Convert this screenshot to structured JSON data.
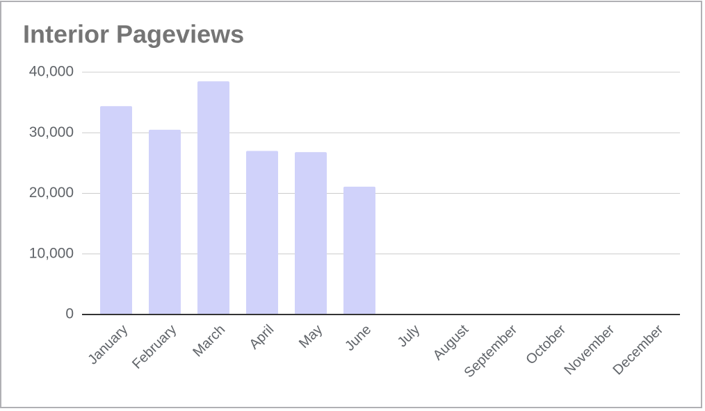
{
  "chart_data": {
    "type": "bar",
    "title": "Interior Pageviews",
    "categories": [
      "January",
      "February",
      "March",
      "April",
      "May",
      "June",
      "July",
      "August",
      "September",
      "October",
      "November",
      "December"
    ],
    "values": [
      34400,
      30500,
      38500,
      27000,
      26800,
      21100,
      null,
      null,
      null,
      null,
      null,
      null
    ],
    "color": "#d0d2fa",
    "ylim": [
      0,
      40000
    ],
    "yticks": [
      0,
      {
        "value": 10000,
        "label": "10,000"
      },
      {
        "value": 20000,
        "label": "20,000"
      },
      {
        "value": 30000,
        "label": "30,000"
      },
      {
        "value": 40000,
        "label": "40,000"
      }
    ],
    "grid": true
  }
}
